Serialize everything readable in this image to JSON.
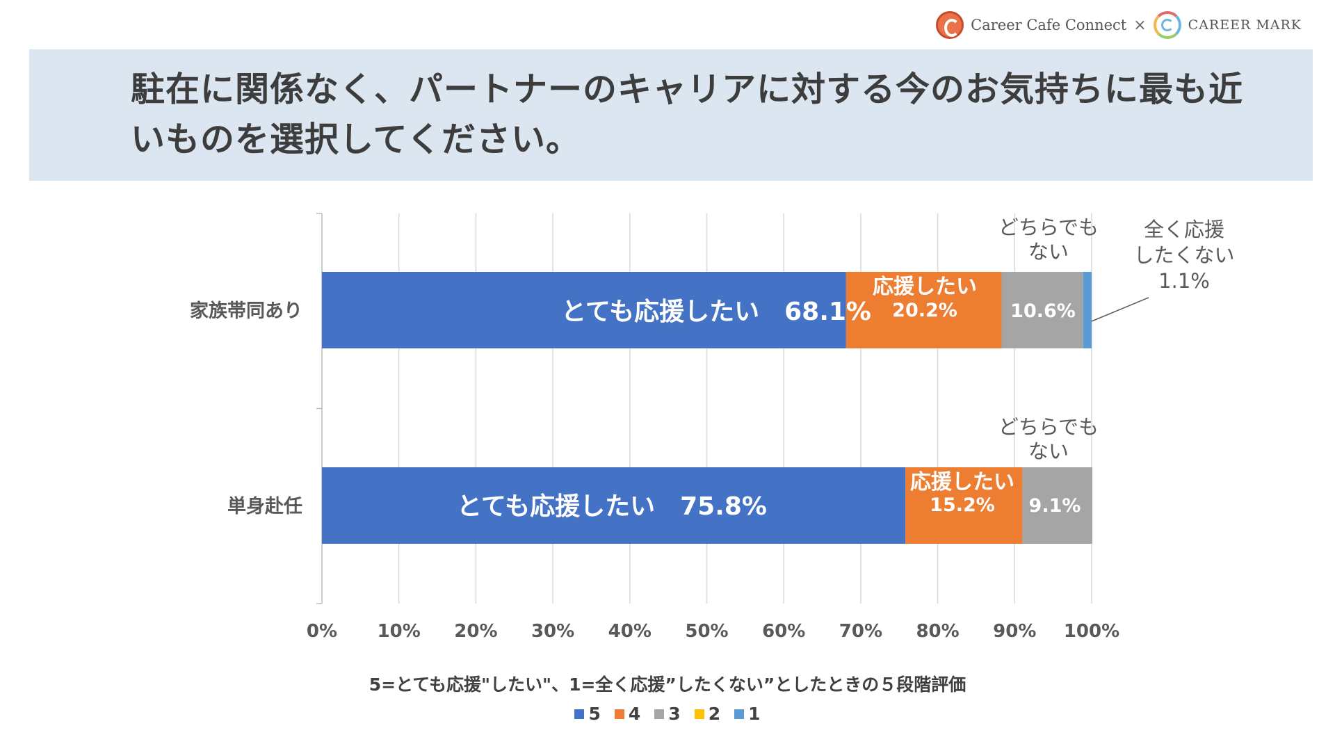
{
  "brand": {
    "left": "Career Cafe Connect",
    "separator": "×",
    "right": "CAREER MARK"
  },
  "title": "駐在に関係なく、パートナーのキャリアに対する今のお気持ちに最も近いものを選択してください。",
  "colors": {
    "5": "#4472c4",
    "4": "#ed7d31",
    "3": "#a5a5a5",
    "2": "#ffc000",
    "1": "#5b9bd5"
  },
  "chart_data": {
    "type": "bar",
    "orientation": "horizontal",
    "stacked": "percent",
    "categories": [
      "家族帯同あり",
      "単身赴任"
    ],
    "series": [
      {
        "name": "5",
        "values": [
          68.1,
          75.8
        ]
      },
      {
        "name": "4",
        "values": [
          20.2,
          15.2
        ]
      },
      {
        "name": "3",
        "values": [
          10.6,
          9.1
        ]
      },
      {
        "name": "2",
        "values": [
          0,
          0
        ]
      },
      {
        "name": "1",
        "values": [
          1.1,
          0
        ]
      }
    ],
    "xlim": [
      0,
      100
    ],
    "xticks": [
      "0%",
      "10%",
      "20%",
      "30%",
      "40%",
      "50%",
      "60%",
      "70%",
      "80%",
      "90%",
      "100%"
    ],
    "xlabel": "5=とても応援\"したい\"、1=全く応援”したくない”としたときの５段階評価",
    "grid": true,
    "legend": "bottom",
    "annotations": {
      "家族帯同あり": {
        "5": "とても応援したい　68.1%",
        "4_name": "応援したい",
        "4_value": "20.2%",
        "3_value": "10.6%",
        "3_callout": [
          "どちらでも",
          "ない"
        ],
        "1_callout": [
          "全く応援",
          "したくない",
          "1.1%"
        ]
      },
      "単身赴任": {
        "5": "とても応援したい　75.8%",
        "4_name": "応援したい",
        "4_value": "15.2%",
        "3_value": "9.1%",
        "3_callout": [
          "どちらでも",
          "ない"
        ]
      }
    }
  }
}
